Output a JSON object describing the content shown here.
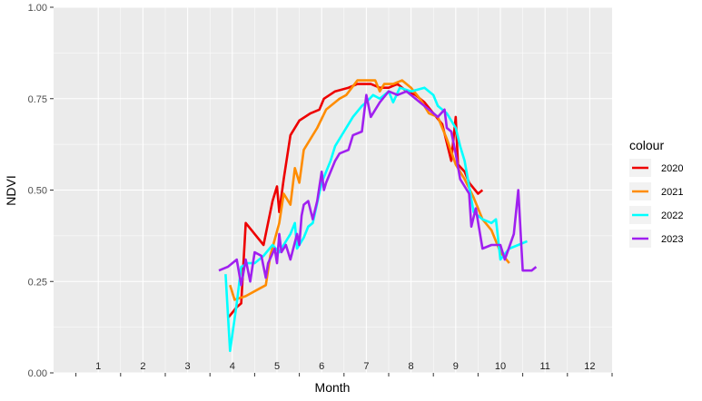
{
  "chart_data": {
    "type": "line",
    "title": "",
    "xlabel": "Month",
    "ylabel": "NDVI",
    "xlim": [
      0,
      12.5
    ],
    "ylim": [
      0,
      1
    ],
    "x_ticks": [
      1,
      2,
      3,
      4,
      5,
      6,
      7,
      8,
      9,
      10,
      11,
      12
    ],
    "x_tick_labels": [
      "1",
      "2",
      "3",
      "4",
      "5",
      "6",
      "7",
      "8",
      "9",
      "10",
      "11",
      "12"
    ],
    "y_ticks": [
      0,
      0.25,
      0.5,
      0.75,
      1
    ],
    "y_tick_labels": [
      "0.00",
      "0.25",
      "0.50",
      "0.75",
      "1.00"
    ],
    "grid": true,
    "legend": {
      "title": "colour",
      "position": "right"
    },
    "series": [
      {
        "name": "2020",
        "color": "#ee0000",
        "points": [
          [
            3.9,
            0.15
          ],
          [
            4.1,
            0.18
          ],
          [
            4.2,
            0.19
          ],
          [
            4.3,
            0.41
          ],
          [
            4.5,
            0.38
          ],
          [
            4.7,
            0.35
          ],
          [
            4.9,
            0.47
          ],
          [
            5.0,
            0.51
          ],
          [
            5.05,
            0.44
          ],
          [
            5.15,
            0.53
          ],
          [
            5.3,
            0.65
          ],
          [
            5.5,
            0.69
          ],
          [
            5.75,
            0.71
          ],
          [
            5.95,
            0.72
          ],
          [
            6.05,
            0.75
          ],
          [
            6.3,
            0.77
          ],
          [
            6.6,
            0.78
          ],
          [
            6.8,
            0.79
          ],
          [
            7.1,
            0.79
          ],
          [
            7.3,
            0.78
          ],
          [
            7.5,
            0.78
          ],
          [
            7.7,
            0.79
          ],
          [
            7.9,
            0.77
          ],
          [
            8.1,
            0.76
          ],
          [
            8.3,
            0.74
          ],
          [
            8.5,
            0.71
          ],
          [
            8.7,
            0.68
          ],
          [
            8.9,
            0.58
          ],
          [
            9.0,
            0.7
          ],
          [
            9.05,
            0.57
          ],
          [
            9.2,
            0.55
          ],
          [
            9.3,
            0.52
          ],
          [
            9.5,
            0.49
          ],
          [
            9.6,
            0.5
          ]
        ]
      },
      {
        "name": "2021",
        "color": "#ff8c00",
        "points": [
          [
            3.95,
            0.24
          ],
          [
            4.05,
            0.2
          ],
          [
            4.3,
            0.21
          ],
          [
            4.6,
            0.23
          ],
          [
            4.75,
            0.24
          ],
          [
            4.85,
            0.32
          ],
          [
            5.05,
            0.41
          ],
          [
            5.15,
            0.49
          ],
          [
            5.3,
            0.46
          ],
          [
            5.4,
            0.56
          ],
          [
            5.5,
            0.52
          ],
          [
            5.6,
            0.61
          ],
          [
            5.9,
            0.67
          ],
          [
            6.1,
            0.72
          ],
          [
            6.4,
            0.75
          ],
          [
            6.55,
            0.76
          ],
          [
            6.8,
            0.8
          ],
          [
            7.0,
            0.8
          ],
          [
            7.2,
            0.8
          ],
          [
            7.3,
            0.77
          ],
          [
            7.4,
            0.79
          ],
          [
            7.6,
            0.79
          ],
          [
            7.8,
            0.8
          ],
          [
            8.0,
            0.78
          ],
          [
            8.2,
            0.75
          ],
          [
            8.4,
            0.71
          ],
          [
            8.6,
            0.7
          ],
          [
            8.8,
            0.64
          ],
          [
            9.0,
            0.57
          ],
          [
            9.2,
            0.53
          ],
          [
            9.4,
            0.48
          ],
          [
            9.6,
            0.42
          ],
          [
            9.8,
            0.39
          ],
          [
            10.0,
            0.33
          ],
          [
            10.2,
            0.3
          ]
        ]
      },
      {
        "name": "2022",
        "color": "#00ffff",
        "points": [
          [
            3.85,
            0.27
          ],
          [
            3.95,
            0.06
          ],
          [
            4.1,
            0.19
          ],
          [
            4.2,
            0.29
          ],
          [
            4.35,
            0.3
          ],
          [
            4.5,
            0.3
          ],
          [
            4.7,
            0.32
          ],
          [
            4.9,
            0.35
          ],
          [
            5.05,
            0.33
          ],
          [
            5.15,
            0.35
          ],
          [
            5.3,
            0.38
          ],
          [
            5.4,
            0.41
          ],
          [
            5.45,
            0.34
          ],
          [
            5.6,
            0.37
          ],
          [
            5.7,
            0.4
          ],
          [
            5.8,
            0.41
          ],
          [
            6.0,
            0.52
          ],
          [
            6.2,
            0.58
          ],
          [
            6.3,
            0.62
          ],
          [
            6.5,
            0.66
          ],
          [
            6.7,
            0.7
          ],
          [
            6.9,
            0.73
          ],
          [
            7.0,
            0.74
          ],
          [
            7.15,
            0.76
          ],
          [
            7.3,
            0.75
          ],
          [
            7.5,
            0.77
          ],
          [
            7.6,
            0.74
          ],
          [
            7.75,
            0.78
          ],
          [
            8.0,
            0.77
          ],
          [
            8.3,
            0.78
          ],
          [
            8.5,
            0.76
          ],
          [
            8.6,
            0.73
          ],
          [
            8.8,
            0.71
          ],
          [
            9.0,
            0.67
          ],
          [
            9.1,
            0.62
          ],
          [
            9.2,
            0.58
          ],
          [
            9.3,
            0.51
          ],
          [
            9.4,
            0.44
          ],
          [
            9.6,
            0.42
          ],
          [
            9.8,
            0.41
          ],
          [
            9.9,
            0.42
          ],
          [
            10.0,
            0.31
          ],
          [
            10.2,
            0.34
          ],
          [
            10.4,
            0.35
          ],
          [
            10.6,
            0.36
          ]
        ]
      },
      {
        "name": "2023",
        "color": "#a020f0",
        "points": [
          [
            3.7,
            0.28
          ],
          [
            3.9,
            0.29
          ],
          [
            4.1,
            0.31
          ],
          [
            4.2,
            0.24
          ],
          [
            4.3,
            0.31
          ],
          [
            4.4,
            0.25
          ],
          [
            4.5,
            0.33
          ],
          [
            4.65,
            0.32
          ],
          [
            4.75,
            0.26
          ],
          [
            4.8,
            0.3
          ],
          [
            4.95,
            0.34
          ],
          [
            5.0,
            0.3
          ],
          [
            5.05,
            0.38
          ],
          [
            5.1,
            0.33
          ],
          [
            5.2,
            0.35
          ],
          [
            5.3,
            0.31
          ],
          [
            5.45,
            0.38
          ],
          [
            5.5,
            0.35
          ],
          [
            5.55,
            0.43
          ],
          [
            5.6,
            0.46
          ],
          [
            5.7,
            0.47
          ],
          [
            5.8,
            0.42
          ],
          [
            5.9,
            0.47
          ],
          [
            6.0,
            0.55
          ],
          [
            6.05,
            0.5
          ],
          [
            6.1,
            0.52
          ],
          [
            6.3,
            0.58
          ],
          [
            6.4,
            0.6
          ],
          [
            6.6,
            0.61
          ],
          [
            6.7,
            0.65
          ],
          [
            6.9,
            0.66
          ],
          [
            7.0,
            0.76
          ],
          [
            7.1,
            0.7
          ],
          [
            7.3,
            0.74
          ],
          [
            7.5,
            0.77
          ],
          [
            7.7,
            0.76
          ],
          [
            7.9,
            0.77
          ],
          [
            8.0,
            0.76
          ],
          [
            8.2,
            0.74
          ],
          [
            8.4,
            0.72
          ],
          [
            8.6,
            0.7
          ],
          [
            8.75,
            0.72
          ],
          [
            8.8,
            0.67
          ],
          [
            8.9,
            0.66
          ],
          [
            9.0,
            0.6
          ],
          [
            9.1,
            0.53
          ],
          [
            9.3,
            0.49
          ],
          [
            9.35,
            0.4
          ],
          [
            9.45,
            0.45
          ],
          [
            9.6,
            0.34
          ],
          [
            9.8,
            0.35
          ],
          [
            10.0,
            0.35
          ],
          [
            10.1,
            0.31
          ],
          [
            10.3,
            0.38
          ],
          [
            10.4,
            0.5
          ],
          [
            10.5,
            0.28
          ],
          [
            10.7,
            0.28
          ],
          [
            10.8,
            0.29
          ]
        ]
      }
    ]
  }
}
